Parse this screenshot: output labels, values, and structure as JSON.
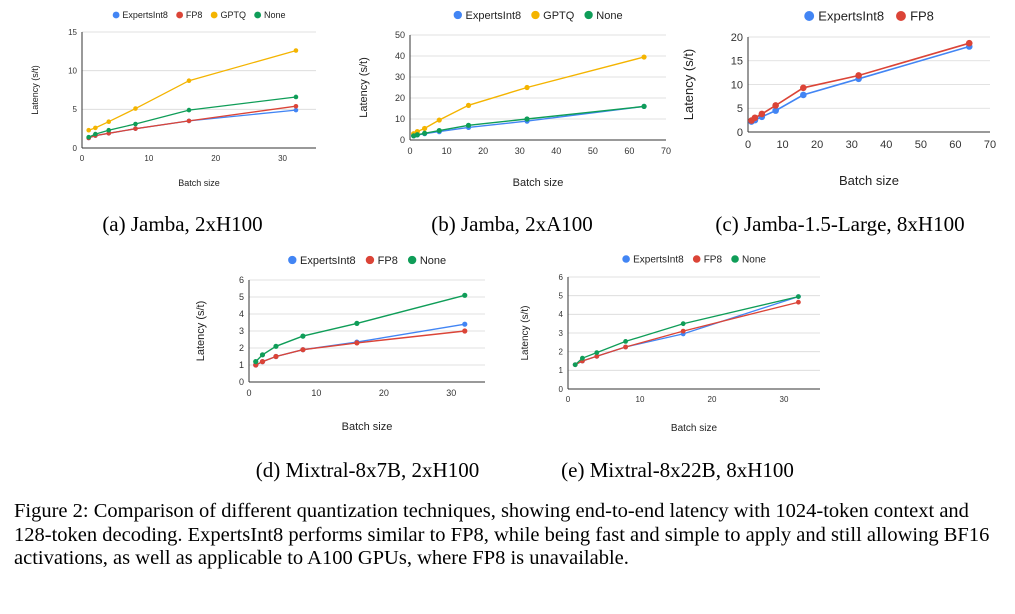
{
  "colors": {
    "ExpertsInt8": "#4285f4",
    "FP8": "#db4437",
    "GPTQ": "#f4b400",
    "None": "#0f9d58",
    "grid": "#d9d9d9",
    "axis": "#333333"
  },
  "figure_caption": "Figure 2: Comparison of different quantization techniques, showing end-to-end latency with 1024-token context and 128-token decoding. ExpertsInt8 performs similar to FP8, while being fast and simple to apply and still allowing BF16 activations, as well as applicable to A100 GPUs, where FP8 is unavailable.",
  "chart_data": [
    {
      "type": "line",
      "subcaption": "(a) Jamba, 2xH100",
      "xlabel": "Batch size",
      "ylabel": "Latency (s/t)",
      "xlim": [
        0,
        35
      ],
      "ylim": [
        0,
        15
      ],
      "xticks": [
        0,
        10,
        20,
        30
      ],
      "yticks": [
        0,
        5,
        10,
        15
      ],
      "legend_position": "top",
      "grid": true,
      "series": [
        {
          "name": "ExpertsInt8",
          "x": [
            1,
            2,
            4,
            8,
            16,
            32
          ],
          "y": [
            1.3,
            1.6,
            1.9,
            2.5,
            3.5,
            4.9
          ]
        },
        {
          "name": "FP8",
          "x": [
            1,
            2,
            4,
            8,
            16,
            32
          ],
          "y": [
            1.3,
            1.6,
            1.9,
            2.5,
            3.5,
            5.4
          ]
        },
        {
          "name": "GPTQ",
          "x": [
            1,
            2,
            4,
            8,
            16,
            32
          ],
          "y": [
            2.3,
            2.6,
            3.4,
            5.1,
            8.7,
            12.6
          ]
        },
        {
          "name": "None",
          "x": [
            1,
            2,
            4,
            8,
            16,
            32
          ],
          "y": [
            1.4,
            1.8,
            2.3,
            3.1,
            4.9,
            6.6
          ]
        }
      ]
    },
    {
      "type": "line",
      "subcaption": "(b) Jamba, 2xA100",
      "xlabel": "Batch size",
      "ylabel": "Latency (s/t)",
      "xlim": [
        0,
        70
      ],
      "ylim": [
        0,
        50
      ],
      "xticks": [
        0,
        10,
        20,
        30,
        40,
        50,
        60,
        70
      ],
      "yticks": [
        0,
        10,
        20,
        30,
        40,
        50
      ],
      "legend_position": "top",
      "grid": true,
      "series": [
        {
          "name": "ExpertsInt8",
          "x": [
            1,
            2,
            4,
            8,
            16,
            32,
            64
          ],
          "y": [
            2.0,
            2.4,
            3.0,
            4.0,
            6.0,
            9.0,
            16.0
          ]
        },
        {
          "name": "GPTQ",
          "x": [
            1,
            2,
            4,
            8,
            16,
            32,
            64
          ],
          "y": [
            3.0,
            4.0,
            5.5,
            9.5,
            16.5,
            25.0,
            39.5
          ]
        },
        {
          "name": "None",
          "x": [
            1,
            2,
            4,
            8,
            16,
            32,
            64
          ],
          "y": [
            2.0,
            2.5,
            3.2,
            4.5,
            7.0,
            10.0,
            16.0
          ]
        }
      ]
    },
    {
      "type": "line",
      "subcaption": "(c) Jamba-1.5-Large, 8xH100",
      "xlabel": "Batch size",
      "ylabel": "Latency (s/t)",
      "xlim": [
        0,
        70
      ],
      "ylim": [
        0,
        20
      ],
      "xticks": [
        0,
        10,
        20,
        30,
        40,
        50,
        60,
        70
      ],
      "yticks": [
        0,
        5,
        10,
        15,
        20
      ],
      "legend_position": "top",
      "grid": true,
      "series": [
        {
          "name": "ExpertsInt8",
          "x": [
            1,
            2,
            4,
            8,
            16,
            32,
            64
          ],
          "y": [
            2.2,
            2.5,
            3.2,
            4.5,
            7.8,
            11.2,
            18.0
          ]
        },
        {
          "name": "FP8",
          "x": [
            1,
            2,
            4,
            8,
            16,
            32,
            64
          ],
          "y": [
            2.4,
            3.0,
            3.8,
            5.6,
            9.3,
            11.9,
            18.7
          ]
        }
      ]
    },
    {
      "type": "line",
      "subcaption": "(d) Mixtral-8x7B, 2xH100",
      "xlabel": "Batch size",
      "ylabel": "Latency (s/t)",
      "xlim": [
        0,
        35
      ],
      "ylim": [
        0,
        6
      ],
      "xticks": [
        0,
        10,
        20,
        30
      ],
      "yticks": [
        0,
        1,
        2,
        3,
        4,
        5,
        6
      ],
      "legend_position": "top",
      "grid": true,
      "series": [
        {
          "name": "ExpertsInt8",
          "x": [
            1,
            2,
            4,
            8,
            16,
            32
          ],
          "y": [
            1.0,
            1.2,
            1.5,
            1.9,
            2.35,
            3.4
          ]
        },
        {
          "name": "FP8",
          "x": [
            1,
            2,
            4,
            8,
            16,
            32
          ],
          "y": [
            1.0,
            1.2,
            1.5,
            1.9,
            2.3,
            3.0
          ]
        },
        {
          "name": "None",
          "x": [
            1,
            2,
            4,
            8,
            16,
            32
          ],
          "y": [
            1.2,
            1.6,
            2.1,
            2.7,
            3.45,
            5.1
          ]
        }
      ]
    },
    {
      "type": "line",
      "subcaption": "(e) Mixtral-8x22B, 8xH100",
      "xlabel": "Batch size",
      "ylabel": "Latency (s/t)",
      "xlim": [
        0,
        35
      ],
      "ylim": [
        0,
        6
      ],
      "xticks": [
        0,
        10,
        20,
        30
      ],
      "yticks": [
        0,
        1,
        2,
        3,
        4,
        5,
        6
      ],
      "legend_position": "top",
      "grid": true,
      "series": [
        {
          "name": "ExpertsInt8",
          "x": [
            1,
            2,
            4,
            8,
            16,
            32
          ],
          "y": [
            1.3,
            1.5,
            1.75,
            2.25,
            2.95,
            4.95
          ]
        },
        {
          "name": "FP8",
          "x": [
            1,
            2,
            4,
            8,
            16,
            32
          ],
          "y": [
            1.3,
            1.5,
            1.75,
            2.25,
            3.1,
            4.65
          ]
        },
        {
          "name": "None",
          "x": [
            1,
            2,
            4,
            8,
            16,
            32
          ],
          "y": [
            1.3,
            1.65,
            1.95,
            2.55,
            3.5,
            4.95
          ]
        }
      ]
    }
  ]
}
